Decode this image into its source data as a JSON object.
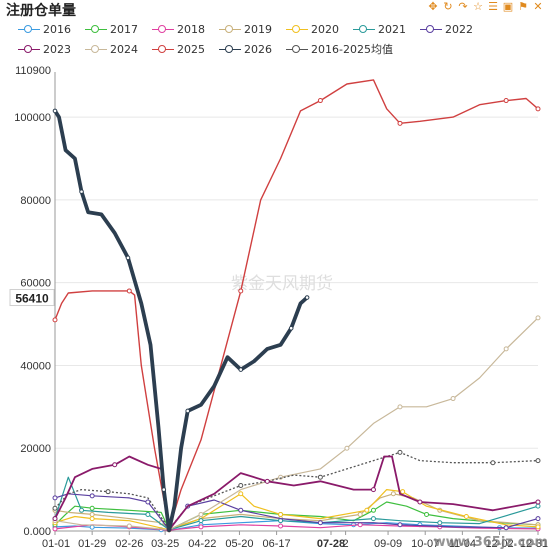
{
  "header": {
    "title": "注册仓单量"
  },
  "toolbar": {
    "icons": [
      "move-icon",
      "refresh-icon",
      "redo-icon",
      "star-icon",
      "list-icon",
      "image-icon",
      "bell-icon",
      "close-icon"
    ],
    "glyphs": [
      "✥",
      "↻",
      "↷",
      "☆",
      "☰",
      "▣",
      "⚑",
      "✕"
    ],
    "color": "#e08a1e"
  },
  "watermark": "紫金天风期货",
  "corner_watermark": "www.365jz.com",
  "current_value_label": "56410",
  "current_date_label": "07-28",
  "chart_data": {
    "type": "line",
    "title": "注册仓单量",
    "ylim": [
      0,
      110900
    ],
    "y_ticks": [
      0,
      20000,
      40000,
      60000,
      80000,
      100000
    ],
    "y_tick_labels": [
      "0.000",
      "20000",
      "40000",
      "60000",
      "80000",
      "100000"
    ],
    "y_max_label": "110900",
    "x_tick_labels": [
      "01-01",
      "01-29",
      "02-26",
      "03-25",
      "04-22",
      "05-20",
      "06-17",
      "07-28",
      "2",
      "09-09",
      "10-07",
      "11-04",
      "12-02",
      "12-31"
    ],
    "x_tick_days": [
      0,
      28,
      56,
      83,
      111,
      139,
      167,
      208,
      219,
      251,
      279,
      307,
      335,
      364
    ],
    "legend": [
      "2016",
      "2017",
      "2018",
      "2019",
      "2020",
      "2021",
      "2022",
      "2023",
      "2024",
      "2025",
      "2026",
      "2016-2025均值"
    ],
    "series": [
      {
        "name": "2016",
        "color": "#3b9be0",
        "width": 1.2,
        "dash": false,
        "points": [
          [
            0,
            1000
          ],
          [
            15,
            1200
          ],
          [
            28,
            900
          ],
          [
            56,
            700
          ],
          [
            80,
            300
          ],
          [
            87,
            200
          ],
          [
            110,
            1500
          ],
          [
            140,
            2000
          ],
          [
            170,
            2500
          ],
          [
            200,
            1800
          ],
          [
            225,
            1500
          ],
          [
            250,
            2000
          ],
          [
            275,
            1500
          ],
          [
            300,
            1200
          ],
          [
            335,
            800
          ],
          [
            364,
            700
          ]
        ]
      },
      {
        "name": "2017",
        "color": "#3fbf3f",
        "width": 1.2,
        "dash": false,
        "points": [
          [
            0,
            1500
          ],
          [
            8,
            4000
          ],
          [
            15,
            6000
          ],
          [
            28,
            5500
          ],
          [
            56,
            5000
          ],
          [
            80,
            4500
          ],
          [
            86,
            300
          ],
          [
            110,
            4000
          ],
          [
            140,
            5000
          ],
          [
            170,
            4000
          ],
          [
            200,
            3500
          ],
          [
            225,
            2500
          ],
          [
            240,
            5000
          ],
          [
            250,
            7000
          ],
          [
            265,
            6000
          ],
          [
            280,
            4000
          ],
          [
            300,
            3000
          ],
          [
            335,
            2000
          ],
          [
            364,
            1500
          ]
        ]
      },
      {
        "name": "2018",
        "color": "#e040a0",
        "width": 1.2,
        "dash": false,
        "points": [
          [
            0,
            500
          ],
          [
            28,
            1500
          ],
          [
            56,
            1000
          ],
          [
            86,
            200
          ],
          [
            110,
            1000
          ],
          [
            140,
            1500
          ],
          [
            170,
            1200
          ],
          [
            200,
            800
          ],
          [
            230,
            1500
          ],
          [
            260,
            1200
          ],
          [
            290,
            1000
          ],
          [
            320,
            700
          ],
          [
            364,
            500
          ]
        ]
      },
      {
        "name": "2019",
        "color": "#c8b07a",
        "width": 1.2,
        "dash": false,
        "points": [
          [
            0,
            5000
          ],
          [
            10,
            4500
          ],
          [
            28,
            4000
          ],
          [
            56,
            3000
          ],
          [
            80,
            2000
          ],
          [
            86,
            500
          ],
          [
            110,
            3000
          ],
          [
            140,
            4000
          ],
          [
            170,
            3000
          ],
          [
            200,
            2500
          ],
          [
            230,
            4000
          ],
          [
            245,
            8000
          ],
          [
            255,
            9000
          ],
          [
            270,
            8000
          ],
          [
            290,
            5000
          ],
          [
            320,
            2500
          ],
          [
            364,
            1500
          ]
        ]
      },
      {
        "name": "2020",
        "color": "#f0c020",
        "width": 1.2,
        "dash": false,
        "points": [
          [
            0,
            2000
          ],
          [
            15,
            3500
          ],
          [
            28,
            3000
          ],
          [
            56,
            2500
          ],
          [
            86,
            300
          ],
          [
            110,
            3000
          ],
          [
            140,
            9000
          ],
          [
            150,
            6000
          ],
          [
            170,
            4000
          ],
          [
            200,
            3000
          ],
          [
            235,
            5000
          ],
          [
            250,
            10000
          ],
          [
            262,
            9500
          ],
          [
            280,
            6000
          ],
          [
            310,
            3500
          ],
          [
            340,
            1500
          ],
          [
            364,
            1000
          ]
        ]
      },
      {
        "name": "2021",
        "color": "#2a9a9a",
        "width": 1.2,
        "dash": false,
        "points": [
          [
            0,
            3000
          ],
          [
            10,
            13000
          ],
          [
            20,
            5000
          ],
          [
            40,
            4500
          ],
          [
            70,
            4000
          ],
          [
            86,
            300
          ],
          [
            110,
            2500
          ],
          [
            140,
            3500
          ],
          [
            170,
            2500
          ],
          [
            200,
            2000
          ],
          [
            240,
            3000
          ],
          [
            260,
            2500
          ],
          [
            290,
            2000
          ],
          [
            320,
            1800
          ],
          [
            364,
            6000
          ]
        ]
      },
      {
        "name": "2022",
        "color": "#5a3fa0",
        "width": 1.2,
        "dash": false,
        "points": [
          [
            0,
            8000
          ],
          [
            10,
            9000
          ],
          [
            28,
            8500
          ],
          [
            56,
            8000
          ],
          [
            70,
            7000
          ],
          [
            86,
            300
          ],
          [
            100,
            6000
          ],
          [
            120,
            7500
          ],
          [
            140,
            5000
          ],
          [
            170,
            3000
          ],
          [
            200,
            2000
          ],
          [
            240,
            2000
          ],
          [
            260,
            1500
          ],
          [
            300,
            1000
          ],
          [
            340,
            800
          ],
          [
            364,
            3000
          ]
        ]
      },
      {
        "name": "2023",
        "color": "#8a1a6a",
        "width": 1.8,
        "dash": false,
        "points": [
          [
            0,
            3000
          ],
          [
            8,
            8000
          ],
          [
            15,
            13000
          ],
          [
            28,
            15000
          ],
          [
            45,
            16000
          ],
          [
            56,
            18000
          ],
          [
            70,
            16000
          ],
          [
            80,
            15000
          ],
          [
            86,
            300
          ],
          [
            100,
            6000
          ],
          [
            120,
            9000
          ],
          [
            140,
            14000
          ],
          [
            160,
            12000
          ],
          [
            180,
            11000
          ],
          [
            200,
            12000
          ],
          [
            225,
            10000
          ],
          [
            240,
            10000
          ],
          [
            248,
            18000
          ],
          [
            254,
            18000
          ],
          [
            260,
            9000
          ],
          [
            275,
            7000
          ],
          [
            300,
            6500
          ],
          [
            330,
            5000
          ],
          [
            364,
            7000
          ]
        ]
      },
      {
        "name": "2024",
        "color": "#c8b89a",
        "width": 1.2,
        "dash": false,
        "points": [
          [
            0,
            2500
          ],
          [
            20,
            1500
          ],
          [
            56,
            1200
          ],
          [
            86,
            300
          ],
          [
            110,
            4000
          ],
          [
            140,
            10000
          ],
          [
            170,
            13000
          ],
          [
            200,
            15000
          ],
          [
            220,
            20000
          ],
          [
            240,
            26000
          ],
          [
            260,
            30000
          ],
          [
            280,
            30000
          ],
          [
            300,
            32000
          ],
          [
            320,
            37000
          ],
          [
            340,
            44000
          ],
          [
            364,
            51500
          ]
        ]
      },
      {
        "name": "2025",
        "color": "#d04040",
        "width": 1.4,
        "dash": false,
        "points": [
          [
            0,
            51000
          ],
          [
            5,
            55000
          ],
          [
            10,
            57500
          ],
          [
            28,
            58000
          ],
          [
            56,
            58000
          ],
          [
            60,
            57000
          ],
          [
            65,
            40000
          ],
          [
            75,
            20000
          ],
          [
            86,
            500
          ],
          [
            95,
            10000
          ],
          [
            110,
            22000
          ],
          [
            125,
            40000
          ],
          [
            140,
            58000
          ],
          [
            155,
            80000
          ],
          [
            170,
            90000
          ],
          [
            185,
            101500
          ],
          [
            200,
            104000
          ],
          [
            220,
            108000
          ],
          [
            240,
            109000
          ],
          [
            250,
            102000
          ],
          [
            260,
            98500
          ],
          [
            275,
            99000
          ],
          [
            300,
            100000
          ],
          [
            320,
            103000
          ],
          [
            340,
            104000
          ],
          [
            355,
            104500
          ],
          [
            364,
            102000
          ]
        ]
      },
      {
        "name": "2026",
        "color": "#2c3e50",
        "width": 3.8,
        "dash": false,
        "points": [
          [
            0,
            101500
          ],
          [
            3,
            100000
          ],
          [
            8,
            92000
          ],
          [
            15,
            90000
          ],
          [
            20,
            82000
          ],
          [
            25,
            77000
          ],
          [
            35,
            76500
          ],
          [
            45,
            72000
          ],
          [
            55,
            66000
          ],
          [
            65,
            55000
          ],
          [
            72,
            45000
          ],
          [
            78,
            25000
          ],
          [
            82,
            10000
          ],
          [
            86,
            200
          ],
          [
            90,
            6000
          ],
          [
            95,
            20000
          ],
          [
            100,
            29000
          ],
          [
            110,
            30500
          ],
          [
            120,
            35000
          ],
          [
            130,
            42000
          ],
          [
            140,
            39000
          ],
          [
            150,
            41000
          ],
          [
            160,
            44000
          ],
          [
            170,
            45000
          ],
          [
            178,
            49000
          ],
          [
            185,
            55000
          ],
          [
            190,
            56410
          ]
        ]
      },
      {
        "name": "2016-2025均值",
        "color": "#555555",
        "width": 1.3,
        "dash": true,
        "points": [
          [
            0,
            5500
          ],
          [
            10,
            9000
          ],
          [
            20,
            10000
          ],
          [
            40,
            9500
          ],
          [
            56,
            9000
          ],
          [
            70,
            8000
          ],
          [
            86,
            500
          ],
          [
            100,
            6000
          ],
          [
            120,
            8500
          ],
          [
            140,
            11000
          ],
          [
            160,
            12000
          ],
          [
            180,
            13500
          ],
          [
            200,
            13000
          ],
          [
            220,
            15000
          ],
          [
            240,
            17000
          ],
          [
            260,
            19000
          ],
          [
            275,
            17000
          ],
          [
            300,
            16500
          ],
          [
            330,
            16500
          ],
          [
            364,
            17000
          ]
        ]
      }
    ]
  }
}
